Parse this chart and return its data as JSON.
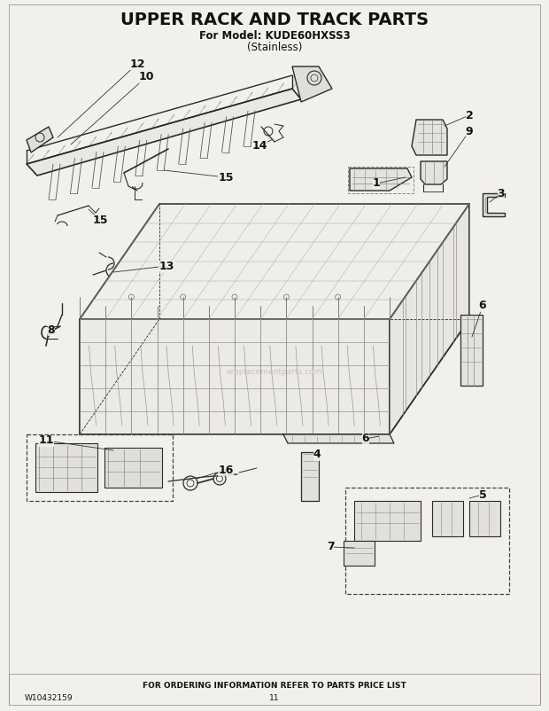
{
  "title": "UPPER RACK AND TRACK PARTS",
  "subtitle1": "For Model: KUDE60HXSS3",
  "subtitle2": "(Stainless)",
  "footer_text": "FOR ORDERING INFORMATION REFER TO PARTS PRICE LIST",
  "part_number": "W10432159",
  "page_number": "11",
  "bg_color": "#f2f0ed",
  "text_color": "#111111",
  "line_color": "#2a2a2a",
  "light_line": "#888888",
  "dashed_color": "#444444",
  "title_fontsize": 14,
  "subtitle_fontsize": 8.5,
  "label_fontsize": 9,
  "footer_fontsize": 6.5,
  "watermark": "ereplacementparts.com"
}
